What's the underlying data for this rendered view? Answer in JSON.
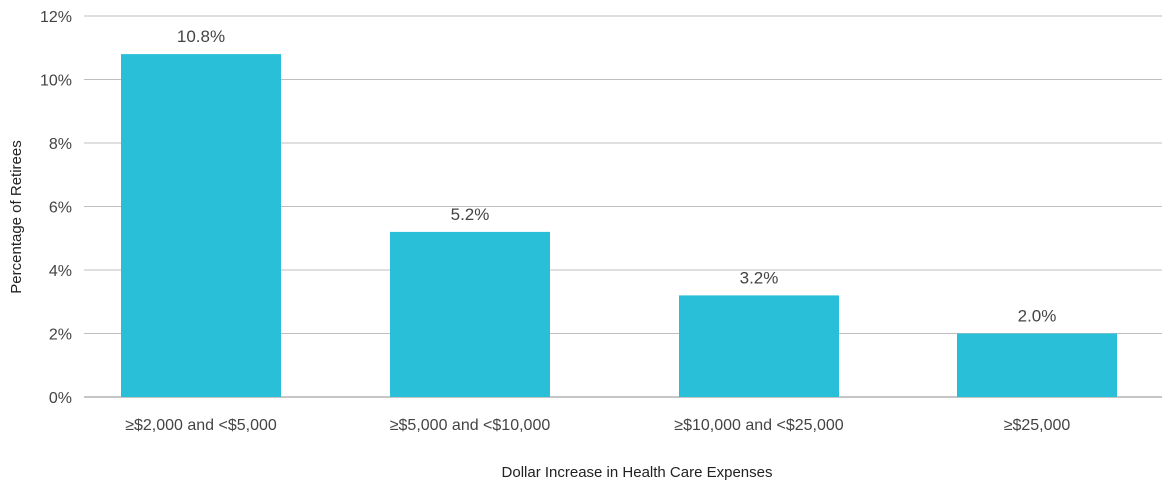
{
  "chart_data": {
    "type": "bar",
    "categories": [
      "≥$2,000 and <$5,000",
      "≥$5,000 and <$10,000",
      "≥$10,000 and <$25,000",
      "≥$25,000"
    ],
    "values": [
      10.8,
      5.2,
      3.2,
      2.0
    ],
    "data_labels": [
      "10.8%",
      "5.2%",
      "3.2%",
      "2.0%"
    ],
    "xlabel": "Dollar Increase in Health Care Expenses",
    "ylabel": "Percentage of Retirees",
    "ylim": [
      0,
      12
    ],
    "yticks": [
      0,
      2,
      4,
      6,
      8,
      10,
      12
    ],
    "ytick_labels": [
      "0%",
      "2%",
      "4%",
      "6%",
      "8%",
      "10%",
      "12%"
    ],
    "grid": true,
    "legend": "none",
    "colors": {
      "bar": "#29BFD9",
      "grid": "#BFBFBF",
      "baseline": "#8C8C8C"
    }
  }
}
